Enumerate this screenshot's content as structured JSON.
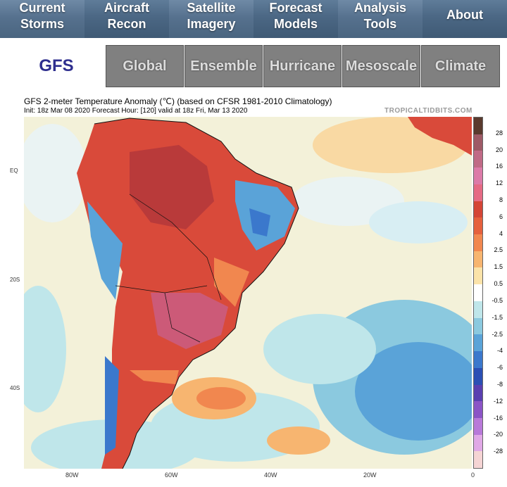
{
  "nav": {
    "items": [
      {
        "label": "Current\nStorms"
      },
      {
        "label": "Aircraft\nRecon"
      },
      {
        "label": "Satellite\nImagery"
      },
      {
        "label": "Forecast\nModels"
      },
      {
        "label": "Analysis\nTools"
      },
      {
        "label": "About"
      }
    ]
  },
  "model": {
    "title": "GFS",
    "tabs": [
      {
        "label": "Global"
      },
      {
        "label": "Ensemble"
      },
      {
        "label": "Hurricane"
      },
      {
        "label": "Mesoscale"
      },
      {
        "label": "Climate"
      }
    ]
  },
  "chart": {
    "title": "GFS 2-meter Temperature Anomaly (℃) (based on CFSR 1981-2010 Climatology)",
    "subtitle": "Init: 18z Mar 08 2020   Forecast Hour: [120]   valid at 18z Fri, Mar 13 2020",
    "brand": "TROPICALTIDBITS.COM",
    "lat_labels": [
      "EQ",
      "20S",
      "40S"
    ],
    "lon_labels": [
      "80W",
      "60W",
      "40W",
      "20W",
      "0"
    ],
    "colorbar": {
      "labels": [
        "28",
        "20",
        "16",
        "12",
        "8",
        "6",
        "4",
        "2.5",
        "1.5",
        "0.5",
        "-0.5",
        "-1.5",
        "-2.5",
        "-4",
        "-6",
        "-8",
        "-12",
        "-16",
        "-20",
        "-28"
      ],
      "colors": [
        "#5a3a2e",
        "#9e5a66",
        "#c06a86",
        "#dc7aa8",
        "#e56a84",
        "#d44536",
        "#e5603d",
        "#f1874f",
        "#f7b570",
        "#fbe3a9",
        "#ffffff",
        "#bfe6ea",
        "#8bc9df",
        "#5aa3d8",
        "#3b78cc",
        "#2b4fb4",
        "#5a3fb0",
        "#8b54c6",
        "#b879d9",
        "#e0a8e6",
        "#f5d4d4"
      ]
    }
  }
}
